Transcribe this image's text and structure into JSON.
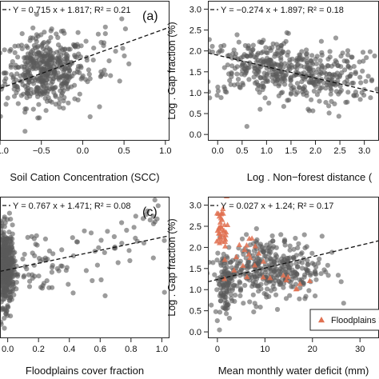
{
  "chart_data": [
    {
      "id": "a",
      "type": "scatter",
      "panel_label": "(a)",
      "title": "",
      "equation": "Y = 0.715 x + 1.817; R² = 0.21",
      "xlabel": "Soil Cation Concentration (SCC)",
      "ylabel": "",
      "xlim": [
        -1.0,
        1.05
      ],
      "ylim": [
        -0.15,
        3.2
      ],
      "xticks": [
        "−1.0",
        "−0.5",
        "0.0",
        "0.5",
        "1.0"
      ],
      "xtick_values": [
        -1.0,
        -0.5,
        0.0,
        0.5,
        1.0
      ],
      "yticks": [],
      "ytick_values": [],
      "regression": {
        "slope": 0.715,
        "intercept": 1.817
      },
      "grid": false,
      "point_color": "#5a5a5a",
      "clouds": [
        {
          "n": 460,
          "cx": -0.45,
          "cy": 1.5,
          "sx": 0.24,
          "sy": 0.42
        },
        {
          "n": 30,
          "cx": 0.25,
          "cy": 2.0,
          "sx": 0.2,
          "sy": 0.4
        }
      ]
    },
    {
      "id": "b",
      "type": "scatter",
      "panel_label": "",
      "title": "",
      "equation": "Y = −0.274 x + 1.897; R² = 0.18",
      "xlabel": "Log . Non−forest distance (",
      "ylabel": "Log . Gap fraction (%)",
      "xlim": [
        -0.2,
        3.3
      ],
      "ylim": [
        -0.15,
        3.2
      ],
      "xticks": [
        "0.0",
        "0.5",
        "1.0",
        "1.5",
        "2.0",
        "2.5",
        "3.0"
      ],
      "xtick_values": [
        0,
        0.5,
        1.0,
        1.5,
        2.0,
        2.5,
        3.0
      ],
      "yticks": [
        "0.0",
        "0.5",
        "1.0",
        "1.5",
        "2.0",
        "2.5",
        "3.0"
      ],
      "ytick_values": [
        0,
        0.5,
        1.0,
        1.5,
        2.0,
        2.5,
        3.0
      ],
      "regression": {
        "slope": -0.274,
        "intercept": 1.897
      },
      "grid": false,
      "point_color": "#5a5a5a",
      "clouds": [
        {
          "n": 320,
          "cx": 1.0,
          "cy": 1.6,
          "sx": 0.7,
          "sy": 0.35
        },
        {
          "n": 180,
          "cx": 2.2,
          "cy": 1.3,
          "sx": 0.55,
          "sy": 0.33
        }
      ]
    },
    {
      "id": "c",
      "type": "scatter",
      "panel_label": "(c)",
      "title": "",
      "equation": "Y = 0.767 x + 1.471; R² = 0.08",
      "xlabel": "Floodplains cover fraction",
      "ylabel": "",
      "xlim": [
        -0.05,
        1.05
      ],
      "ylim": [
        -0.15,
        3.2
      ],
      "xticks": [
        "0.0",
        "0.2",
        "0.4",
        "0.6",
        "0.8",
        "1.0"
      ],
      "xtick_values": [
        0,
        0.2,
        0.4,
        0.6,
        0.8,
        1.0
      ],
      "yticks": [],
      "ytick_values": [],
      "regression": {
        "slope": 0.767,
        "intercept": 1.471
      },
      "grid": false,
      "point_color": "#5a5a5a",
      "clouds": [
        {
          "n": 420,
          "cx": -0.01,
          "cy": 1.5,
          "sx": 0.025,
          "sy": 0.45
        },
        {
          "n": 60,
          "cx": 0.2,
          "cy": 1.65,
          "sx": 0.12,
          "sy": 0.4
        },
        {
          "n": 40,
          "cx": 0.6,
          "cy": 1.9,
          "sx": 0.25,
          "sy": 0.45
        },
        {
          "n": 12,
          "cx": 0.92,
          "cy": 2.75,
          "sx": 0.05,
          "sy": 0.18
        }
      ]
    },
    {
      "id": "d",
      "type": "scatter",
      "panel_label": "",
      "title": "",
      "equation": "Y = 0.027 x + 1.24; R² = 0.17",
      "xlabel": "Mean monthly water deficit (mm)",
      "ylabel": "Log . Gap fraction (%)",
      "xlim": [
        -2,
        34
      ],
      "ylim": [
        -0.15,
        3.2
      ],
      "xticks": [
        "0",
        "10",
        "20",
        "30"
      ],
      "xtick_values": [
        0,
        10,
        20,
        30
      ],
      "yticks": [
        "0.0",
        "0.5",
        "1.0",
        "1.5",
        "2.0",
        "2.5",
        "3.0"
      ],
      "ytick_values": [
        0,
        0.5,
        1.0,
        1.5,
        2.0,
        2.5,
        3.0
      ],
      "regression": {
        "slope": 0.027,
        "intercept": 1.24
      },
      "grid": false,
      "point_color": "#5a5a5a",
      "legend": {
        "label": "Floodplains >",
        "placement": "bottom-right",
        "marker_color": "#e07050"
      },
      "clouds": [
        {
          "n": 380,
          "cx": 11,
          "cy": 1.5,
          "sx": 5.5,
          "sy": 0.38
        },
        {
          "n": 90,
          "cx": 1.5,
          "cy": 1.1,
          "sx": 1.0,
          "sy": 0.35
        }
      ],
      "triangles": [
        {
          "n": 35,
          "cx": 1.0,
          "cy": 2.45,
          "sx": 0.6,
          "sy": 0.28
        },
        {
          "n": 18,
          "cx": 6.5,
          "cy": 1.75,
          "sx": 2.5,
          "sy": 0.3
        },
        {
          "n": 8,
          "cx": 16,
          "cy": 1.2,
          "sx": 2.0,
          "sy": 0.25
        }
      ]
    }
  ]
}
